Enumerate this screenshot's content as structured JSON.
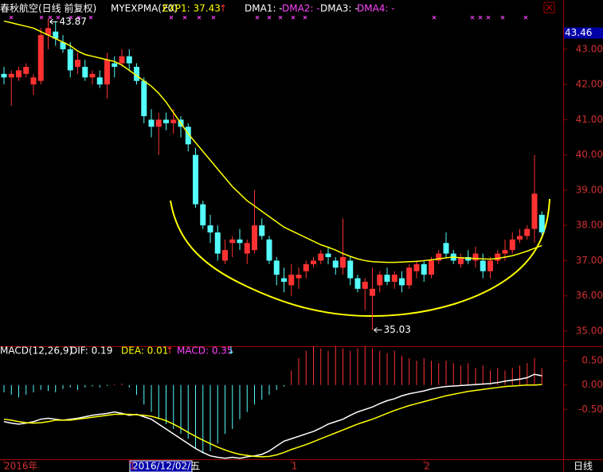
{
  "chart_data": [
    {
      "type": "candlestick",
      "title": "春秋航空(日线 前复权)",
      "header_items": [
        {
          "text": "MYEXPMA(20)",
          "color": "#ffffff"
        },
        {
          "text": "EXP1: 37.43",
          "color": "#ffff00"
        },
        {
          "text": "↑",
          "color": "#ff3232"
        },
        {
          "text": "DMA1: -",
          "color": "#ffffff"
        },
        {
          "text": "DMA2: -",
          "color": "#ff44ff"
        },
        {
          "text": "DMA3: -",
          "color": "#ffffff"
        },
        {
          "text": "DMA4: -",
          "color": "#ff44ff"
        }
      ],
      "categories": [
        "2016年",
        null,
        null,
        null,
        null,
        null,
        null,
        null,
        null,
        null,
        null,
        null,
        null,
        null,
        null,
        null,
        null,
        "1",
        null,
        null,
        null,
        null,
        null,
        null,
        null,
        null,
        null,
        null,
        null,
        null,
        null,
        null,
        null,
        null,
        null,
        null,
        null,
        null,
        null,
        "1",
        null,
        null,
        null,
        null,
        null,
        null,
        null,
        null,
        null,
        null,
        null,
        null,
        null,
        null,
        null,
        null,
        null,
        "2",
        null,
        null,
        null,
        null,
        null,
        null,
        null,
        null,
        null,
        null,
        null,
        null,
        null,
        null,
        null,
        null
      ],
      "cursor_date": "2016/12/02/五",
      "period": "日线",
      "open": [
        42.3,
        42.2,
        42.2,
        42.3,
        42.0,
        42.1,
        43.4,
        43.5,
        43.2,
        43.0,
        42.5,
        42.5,
        42.2,
        42.2,
        42.0,
        42.6,
        42.6,
        42.8,
        42.5,
        42.1,
        41.0,
        40.8,
        41.0,
        40.9,
        41.0,
        40.8,
        40.0,
        38.6,
        38.0,
        37.8,
        37.0,
        37.5,
        37.6,
        37.2,
        37.3,
        38.0,
        37.6,
        37.0,
        36.5,
        36.3,
        36.5,
        36.7,
        36.9,
        37.0,
        37.2,
        37.0,
        36.8,
        37.0,
        36.5,
        36.2,
        36.0,
        36.3,
        36.6,
        36.4,
        36.5,
        36.3,
        36.7,
        36.9,
        36.6,
        37.0,
        37.5,
        37.2,
        36.9,
        37.1,
        37.0,
        37.0,
        36.7,
        37.0,
        37.2,
        37.3,
        37.6,
        37.7,
        37.9,
        38.3
      ],
      "high": [
        42.5,
        42.4,
        42.5,
        42.6,
        42.3,
        43.6,
        43.87,
        43.8,
        43.4,
        43.2,
        42.9,
        42.7,
        42.4,
        42.4,
        42.9,
        42.8,
        43.0,
        43.0,
        42.6,
        42.2,
        41.3,
        41.2,
        41.2,
        41.3,
        41.1,
        40.9,
        40.2,
        38.7,
        38.3,
        38.0,
        37.6,
        37.7,
        37.9,
        37.6,
        39.0,
        38.2,
        37.7,
        37.1,
        36.8,
        36.9,
        36.8,
        37.0,
        37.1,
        37.3,
        37.4,
        37.1,
        38.2,
        37.1,
        36.6,
        36.5,
        36.8,
        36.7,
        36.8,
        36.7,
        36.7,
        36.9,
        37.0,
        37.0,
        37.1,
        37.3,
        37.8,
        37.3,
        37.2,
        37.3,
        37.4,
        37.2,
        37.1,
        37.3,
        37.6,
        37.8,
        37.9,
        38.0,
        40.0,
        38.4
      ],
      "low": [
        42.0,
        41.4,
        42.1,
        42.2,
        41.7,
        42.0,
        43.0,
        43.1,
        42.9,
        42.2,
        42.3,
        42.1,
        42.0,
        41.9,
        41.6,
        42.2,
        42.5,
        42.4,
        42.0,
        40.9,
        40.5,
        40.0,
        40.7,
        40.6,
        40.5,
        40.1,
        38.5,
        37.9,
        37.5,
        37.0,
        36.9,
        37.1,
        37.3,
        36.9,
        37.2,
        37.6,
        36.9,
        36.3,
        36.1,
        36.0,
        36.2,
        36.5,
        36.8,
        36.9,
        36.9,
        36.6,
        36.6,
        36.3,
        36.1,
        35.6,
        35.03,
        36.1,
        36.3,
        36.2,
        36.1,
        36.2,
        36.5,
        36.4,
        36.5,
        36.9,
        37.1,
        36.9,
        36.8,
        36.9,
        36.8,
        36.5,
        36.5,
        36.9,
        37.0,
        37.2,
        37.5,
        37.6,
        37.5,
        37.7
      ],
      "close": [
        42.2,
        42.3,
        42.4,
        42.5,
        42.2,
        43.4,
        43.6,
        43.3,
        43.0,
        42.4,
        42.7,
        42.2,
        42.3,
        42.0,
        42.7,
        42.5,
        42.8,
        42.6,
        42.1,
        41.1,
        40.8,
        41.0,
        40.9,
        41.0,
        40.8,
        40.3,
        38.6,
        38.0,
        37.8,
        37.2,
        37.3,
        37.6,
        37.5,
        37.5,
        38.0,
        37.7,
        37.0,
        36.6,
        36.4,
        36.6,
        36.6,
        36.9,
        37.0,
        37.2,
        37.1,
        36.8,
        37.1,
        36.5,
        36.2,
        36.4,
        36.2,
        36.6,
        36.4,
        36.6,
        36.3,
        36.8,
        36.9,
        36.6,
        37.0,
        37.2,
        37.2,
        37.0,
        37.1,
        37.0,
        37.2,
        36.7,
        37.0,
        37.2,
        37.3,
        37.6,
        37.7,
        37.9,
        38.9,
        37.8
      ],
      "up_color": "#ff3232",
      "down_color": "#54fcfc",
      "series": [
        {
          "color": "#ffff00",
          "values": [
            43.8,
            43.75,
            43.7,
            43.65,
            43.6,
            43.5,
            43.4,
            43.3,
            43.2,
            43.1,
            42.95,
            42.85,
            42.8,
            42.75,
            42.7,
            42.65,
            42.55,
            42.4,
            42.25,
            42.1,
            41.95,
            41.75,
            41.5,
            41.2,
            40.9,
            40.6,
            40.35,
            40.1,
            39.85,
            39.6,
            39.35,
            39.1,
            38.9,
            38.7,
            38.55,
            38.4,
            38.25,
            38.1,
            37.95,
            37.85,
            37.75,
            37.65,
            37.55,
            37.45,
            37.38,
            37.3,
            37.2,
            37.12,
            37.05,
            37.0,
            36.97,
            36.96,
            36.95,
            36.95,
            36.96,
            36.97,
            36.98,
            37.0,
            37.02,
            37.05,
            37.08,
            37.1,
            37.08,
            37.07,
            37.06,
            37.05,
            37.04,
            37.06,
            37.1,
            37.14,
            37.2,
            37.27,
            37.35,
            37.43
          ]
        }
      ],
      "annotations": [
        43.87,
        35.03
      ],
      "price_box": 43.46,
      "ylim": [
        34.57,
        43.9
      ],
      "yticks": [
        {
          "value": 35,
          "label": "35.00"
        },
        {
          "value": 36,
          "label": "36.00"
        },
        {
          "value": 37,
          "label": "37.00"
        },
        {
          "value": 38,
          "label": "38.00"
        },
        {
          "value": 39,
          "label": "39.00"
        },
        {
          "value": 40,
          "label": "40.00"
        },
        {
          "value": 41,
          "label": "41.00"
        },
        {
          "value": 42,
          "label": "42.00"
        },
        {
          "value": 43,
          "label": "43.00"
        }
      ]
    },
    {
      "type": "macd",
      "title": "MACD(12,26,9)",
      "header_items": [
        {
          "text": "DIF: 0.19",
          "color": "#ffffff"
        },
        {
          "text": "DEA: 0.01",
          "color": "#ffff00"
        },
        {
          "text": "↑",
          "color": "#ff3232"
        },
        {
          "text": "MACD: 0.35",
          "color": "#ff44ff"
        },
        {
          "text": "↓",
          "color": "#54fcfc"
        }
      ],
      "hist": [
        -0.15,
        -0.2,
        -0.25,
        -0.2,
        -0.15,
        -0.1,
        -0.12,
        -0.15,
        -0.08,
        -0.05,
        -0.1,
        -0.05,
        -0.03,
        -0.05,
        -0.02,
        0.02,
        0.03,
        -0.05,
        -0.2,
        -0.4,
        -0.55,
        -0.7,
        -0.8,
        -0.9,
        -1.0,
        -1.1,
        -1.3,
        -1.4,
        -1.35,
        -1.2,
        -1.0,
        -0.9,
        -0.7,
        -0.55,
        -0.4,
        -0.3,
        -0.2,
        -0.1,
        -0.03,
        0.3,
        0.55,
        0.7,
        0.8,
        0.75,
        0.7,
        0.8,
        0.75,
        0.7,
        0.75,
        0.8,
        0.75,
        0.7,
        0.65,
        0.7,
        0.6,
        0.55,
        0.5,
        0.55,
        0.5,
        0.45,
        0.5,
        0.45,
        0.4,
        0.45,
        0.35,
        0.4,
        0.3,
        0.35,
        0.3,
        0.35,
        0.4,
        0.45,
        0.55,
        0.35
      ],
      "up_color": "#ff3232",
      "down_color": "#54fcfc",
      "series": [
        {
          "color": "#ffffff",
          "values": [
            -0.75,
            -0.78,
            -0.8,
            -0.78,
            -0.75,
            -0.7,
            -0.68,
            -0.7,
            -0.72,
            -0.7,
            -0.68,
            -0.65,
            -0.62,
            -0.6,
            -0.58,
            -0.55,
            -0.58,
            -0.62,
            -0.6,
            -0.65,
            -0.7,
            -0.8,
            -0.9,
            -1.0,
            -1.1,
            -1.2,
            -1.3,
            -1.38,
            -1.45,
            -1.48,
            -1.5,
            -1.48,
            -1.5,
            -1.47,
            -1.45,
            -1.42,
            -1.35,
            -1.25,
            -1.15,
            -1.1,
            -1.05,
            -1.0,
            -0.95,
            -0.88,
            -0.8,
            -0.75,
            -0.7,
            -0.62,
            -0.55,
            -0.5,
            -0.45,
            -0.38,
            -0.32,
            -0.28,
            -0.22,
            -0.18,
            -0.15,
            -0.12,
            -0.08,
            -0.05,
            -0.03,
            -0.02,
            -0.01,
            0.0,
            0.01,
            0.02,
            0.03,
            0.05,
            0.08,
            0.1,
            0.12,
            0.15,
            0.22,
            0.19
          ]
        },
        {
          "color": "#ffff00",
          "values": [
            -0.7,
            -0.72,
            -0.75,
            -0.77,
            -0.78,
            -0.77,
            -0.75,
            -0.72,
            -0.72,
            -0.72,
            -0.7,
            -0.68,
            -0.66,
            -0.64,
            -0.62,
            -0.6,
            -0.6,
            -0.6,
            -0.61,
            -0.62,
            -0.64,
            -0.68,
            -0.73,
            -0.8,
            -0.88,
            -0.97,
            -1.05,
            -1.13,
            -1.2,
            -1.27,
            -1.33,
            -1.38,
            -1.42,
            -1.44,
            -1.46,
            -1.47,
            -1.46,
            -1.43,
            -1.38,
            -1.32,
            -1.27,
            -1.22,
            -1.16,
            -1.1,
            -1.04,
            -0.98,
            -0.92,
            -0.86,
            -0.8,
            -0.75,
            -0.7,
            -0.64,
            -0.58,
            -0.52,
            -0.47,
            -0.42,
            -0.38,
            -0.34,
            -0.3,
            -0.26,
            -0.22,
            -0.19,
            -0.16,
            -0.13,
            -0.11,
            -0.09,
            -0.07,
            -0.05,
            -0.03,
            -0.02,
            -0.01,
            0.0,
            0.0,
            0.01
          ]
        }
      ],
      "ylim": [
        -1.52,
        0.55
      ],
      "yticks": [
        {
          "value": 0.5,
          "label": "0.50"
        },
        {
          "value": 0,
          "label": "0.00"
        },
        {
          "value": -0.5,
          "label": "-0.50"
        }
      ]
    }
  ]
}
